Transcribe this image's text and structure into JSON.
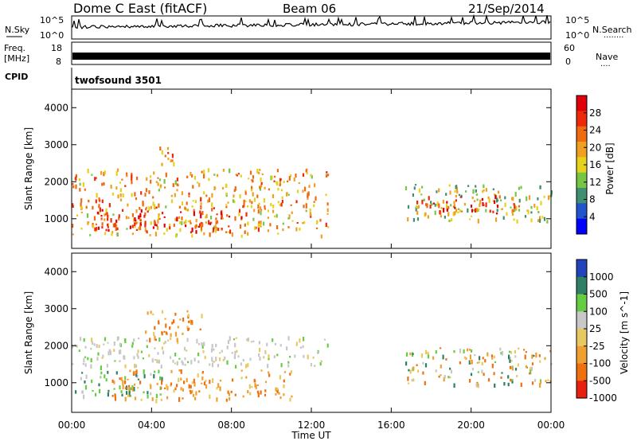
{
  "header": {
    "station": "Dome C East (fitACF)",
    "beam": "Beam 06",
    "date": "21/Sep/2014"
  },
  "noise_panel": {
    "left_label": "N.Sky",
    "left_ticks": [
      "10^5",
      "10^0"
    ],
    "right_ticks": [
      "10^5",
      "10^0"
    ],
    "right_label": "N.Search",
    "right_dots": "········"
  },
  "freq_panel": {
    "left_label_1": "Freq.",
    "left_label_2": "[MHz]",
    "left_ticks": [
      "18",
      "8"
    ],
    "right_ticks": [
      "60",
      "0"
    ],
    "right_label": "Nave",
    "right_dots": "····"
  },
  "cpid_panel": {
    "label": "CPID",
    "value": "twofsound 3501"
  },
  "x_axis": {
    "label": "Time UT",
    "ticks": [
      "00:00",
      "04:00",
      "08:00",
      "12:00",
      "16:00",
      "20:00",
      "00:00"
    ],
    "hours": [
      0,
      4,
      8,
      12,
      16,
      20,
      24
    ]
  },
  "colors": {
    "power": [
      "#0000ff",
      "#2255cc",
      "#3f8f70",
      "#77c544",
      "#e6d21a",
      "#f0a020",
      "#f06a10",
      "#ee2a0a",
      "#e0000a"
    ],
    "velocity": [
      "#2244bb",
      "#2f7f66",
      "#66cc44",
      "#c8c8c8",
      "#e8c860",
      "#f0a030",
      "#f07010",
      "#e82010"
    ]
  },
  "chart_data": [
    {
      "type": "heatmap",
      "name": "power-panel",
      "ylabel": "Slant Range [km]",
      "xlabel": "Time UT",
      "xlim": [
        0,
        24
      ],
      "ylim": [
        200,
        4500
      ],
      "yticks": [
        1000,
        2000,
        3000,
        4000
      ],
      "colorbar": {
        "label": "Power [dB]",
        "ticks": [
          4,
          8,
          12,
          16,
          20,
          24,
          28
        ],
        "range": [
          0,
          32
        ]
      },
      "echo_regions": [
        {
          "t0": 0.0,
          "t1": 12.8,
          "r0": 500,
          "r1": 2300,
          "mean": 20
        },
        {
          "t0": 1.0,
          "t1": 8.5,
          "r0": 600,
          "r1": 1200,
          "mean": 27
        },
        {
          "t0": 4.0,
          "t1": 5.2,
          "r0": 2400,
          "r1": 2900,
          "mean": 22
        },
        {
          "t0": 16.7,
          "t1": 24.0,
          "r0": 900,
          "r1": 1900,
          "mean": 14
        },
        {
          "t0": 17.0,
          "t1": 22.5,
          "r0": 1100,
          "r1": 1600,
          "mean": 25
        }
      ]
    },
    {
      "type": "heatmap",
      "name": "velocity-panel",
      "ylabel": "Slant Range [km]",
      "xlabel": "Time UT",
      "xlim": [
        0,
        24
      ],
      "ylim": [
        200,
        4500
      ],
      "yticks": [
        1000,
        2000,
        3000,
        4000
      ],
      "colorbar": {
        "label": "Velocity [m s^-1]",
        "ticks": [
          "1000",
          "500",
          "100",
          "25",
          "-25",
          "-100",
          "-500",
          "-1000"
        ]
      },
      "echo_regions": [
        {
          "t0": 0.0,
          "t1": 12.8,
          "r0": 1400,
          "r1": 2200,
          "class": "near-zero"
        },
        {
          "t0": 0.0,
          "t1": 4.5,
          "r0": 600,
          "r1": 1300,
          "class": "positive"
        },
        {
          "t0": 2.0,
          "t1": 11.0,
          "r0": 500,
          "r1": 1300,
          "class": "negative"
        },
        {
          "t0": 3.5,
          "t1": 6.5,
          "r0": 2100,
          "r1": 2900,
          "class": "negative"
        },
        {
          "t0": 16.7,
          "t1": 24.0,
          "r0": 900,
          "r1": 1900,
          "class": "mixed"
        }
      ]
    }
  ]
}
